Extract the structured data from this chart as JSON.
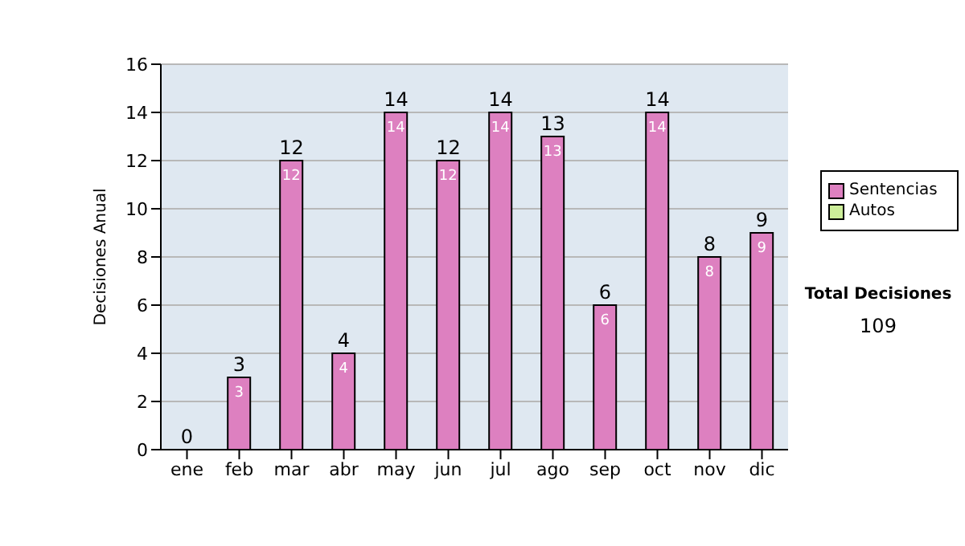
{
  "chart_data": {
    "type": "bar",
    "ylabel": "Decisiones Anual",
    "categories": [
      "ene",
      "feb",
      "mar",
      "abr",
      "may",
      "jun",
      "jul",
      "ago",
      "sep",
      "oct",
      "nov",
      "dic"
    ],
    "series": [
      {
        "name": "Sentencias",
        "color": "#dd80c0",
        "values": [
          0,
          3,
          12,
          4,
          14,
          12,
          14,
          13,
          6,
          14,
          8,
          9
        ],
        "value_labels": [
          null,
          "3",
          "12",
          "4",
          "14",
          "12",
          "14",
          "13",
          "6",
          "14",
          "8",
          "9"
        ]
      },
      {
        "name": "Autos",
        "color": "#ccee99",
        "values": [
          0,
          0,
          0,
          0,
          0,
          0,
          0,
          0,
          0,
          0,
          0,
          0
        ]
      }
    ],
    "stacked": true,
    "totals": [
      "0",
      "3",
      "12",
      "4",
      "14",
      "12",
      "14",
      "13",
      "6",
      "14",
      "8",
      "9"
    ],
    "ylim": [
      0,
      16
    ],
    "yticks": [
      0,
      2,
      4,
      6,
      8,
      10,
      12,
      14,
      16
    ],
    "grid": "y",
    "legend": "right",
    "annotations": [
      "Total Decisiones",
      "109"
    ]
  }
}
